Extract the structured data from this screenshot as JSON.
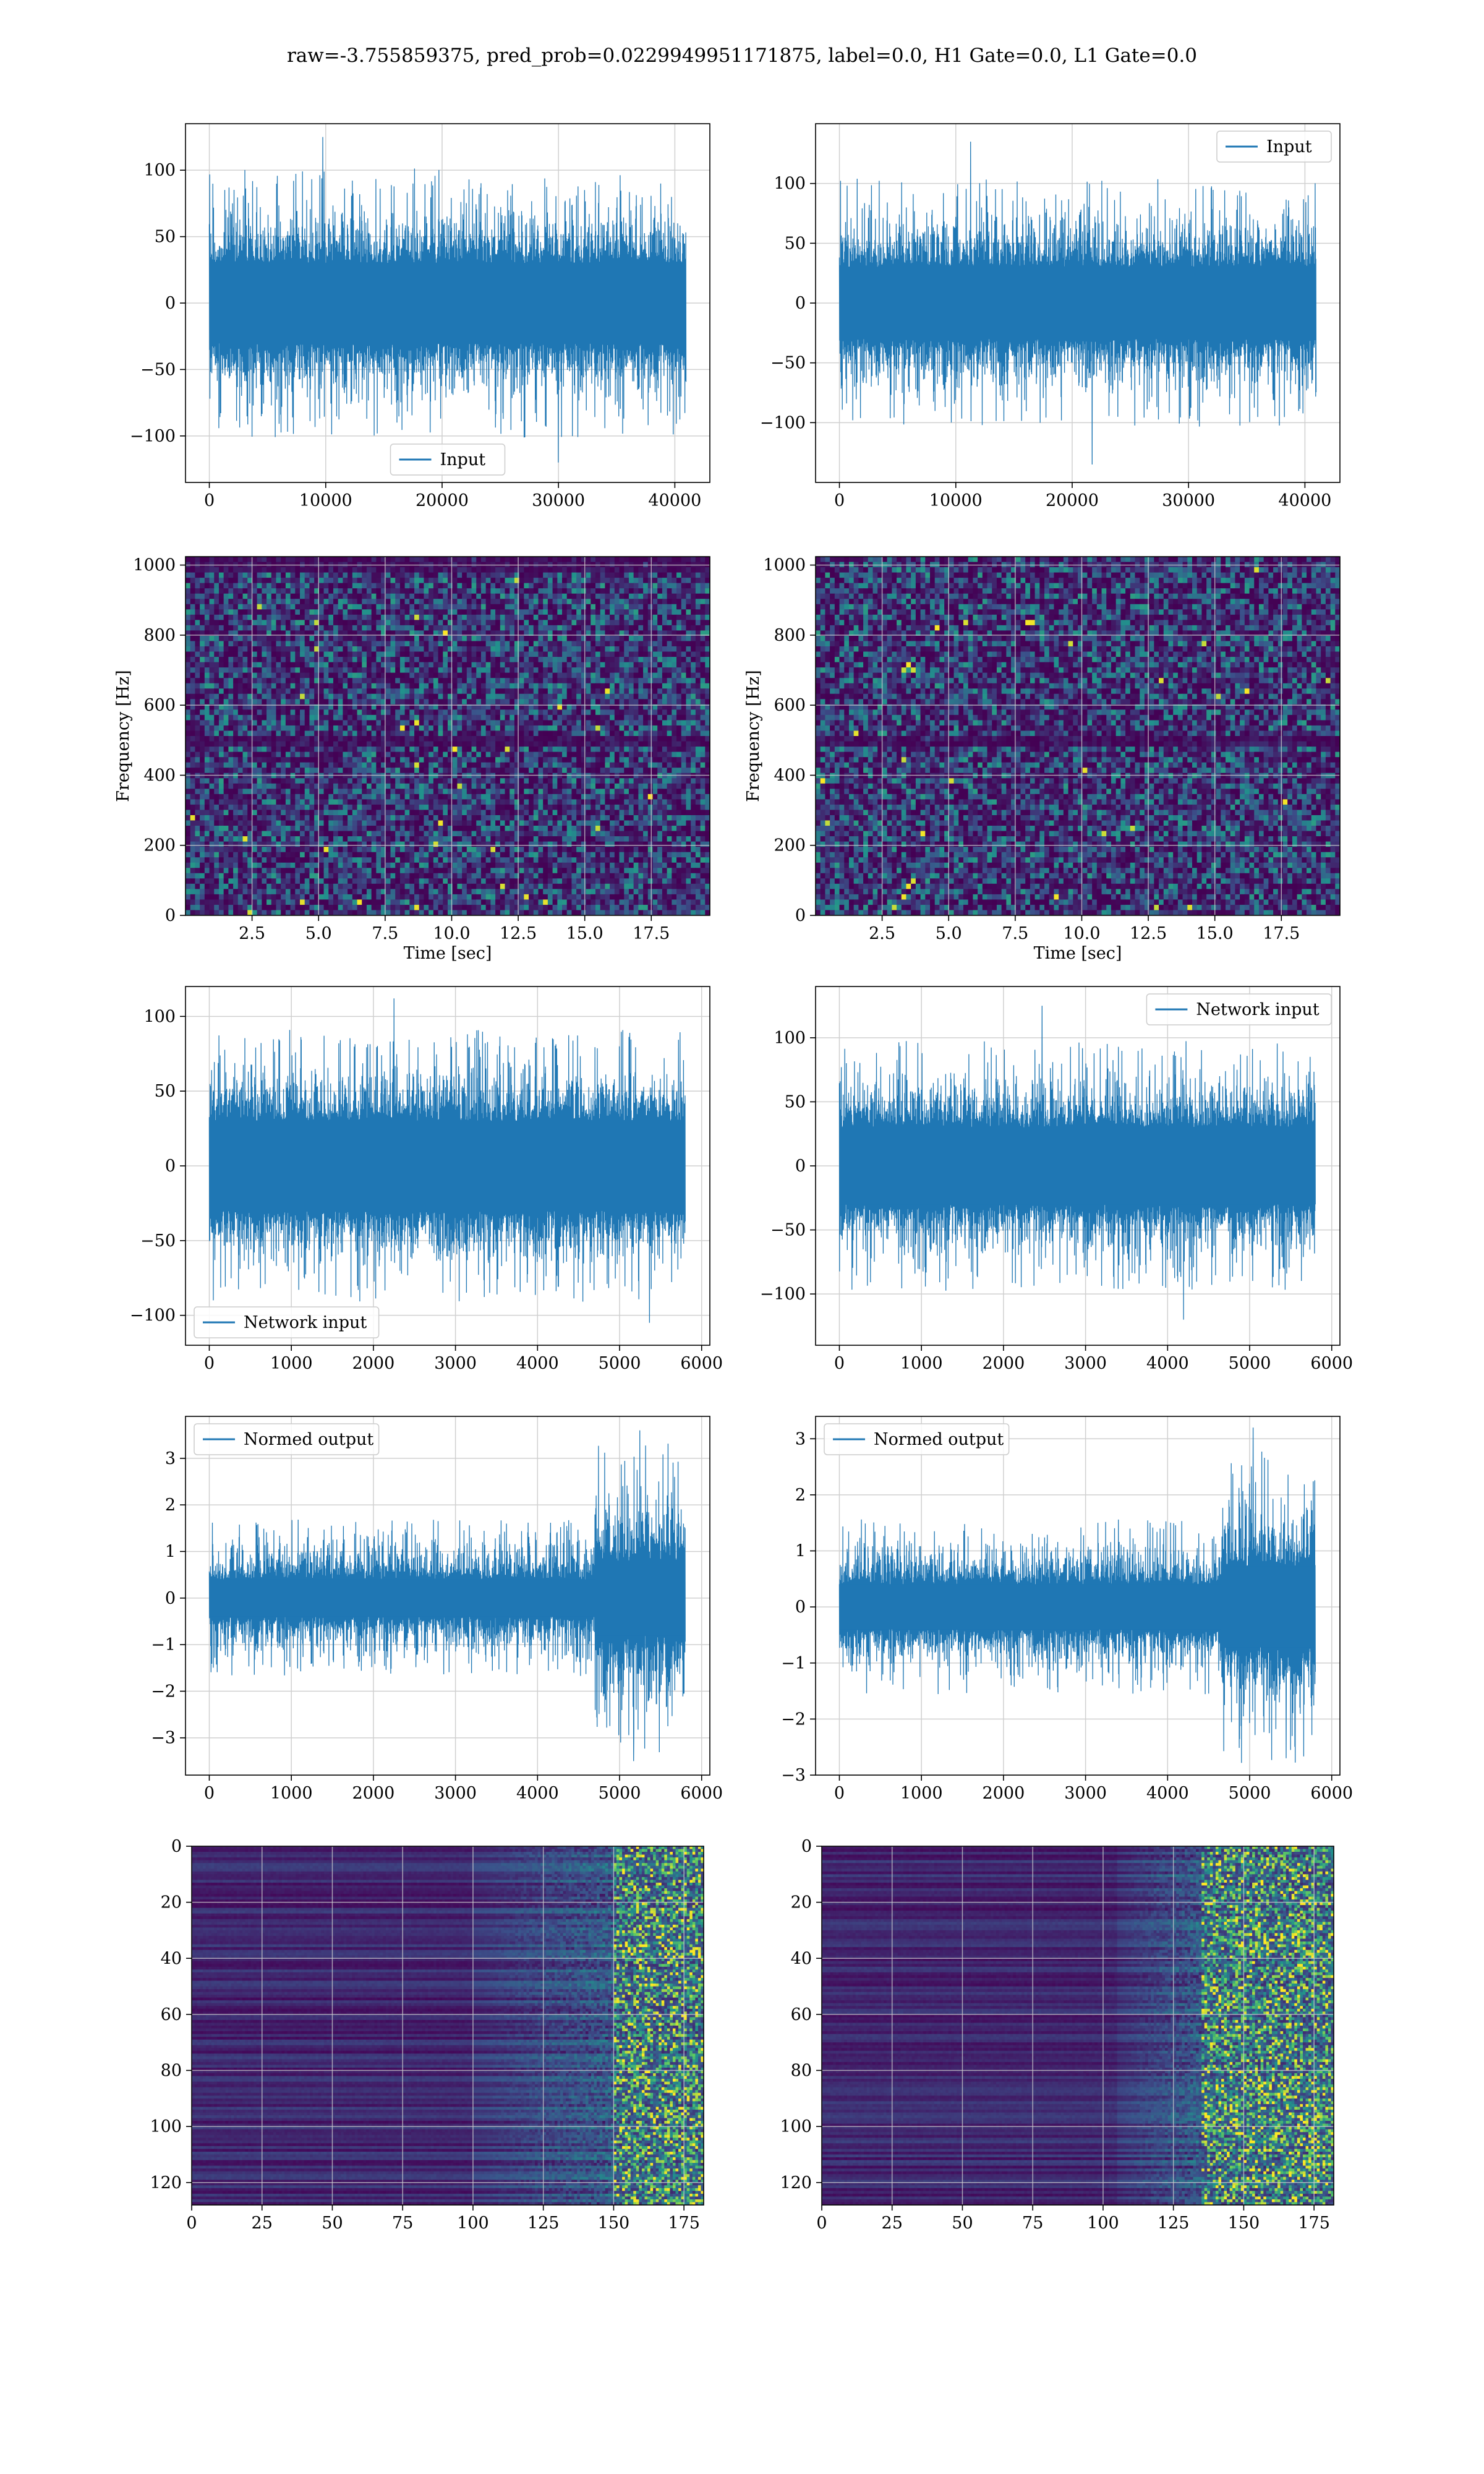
{
  "figure": {
    "title": "raw=-3.755859375, pred_prob=0.0229949951171875, label=0.0, H1 Gate=0.0, L1 Gate=0.0"
  },
  "colors": {
    "line": "#1f77b4",
    "grid": "#d0d0d0",
    "viridis_low": "#440154",
    "viridis_mid": "#21918c",
    "viridis_high": "#fde725"
  },
  "chart_data": [
    {
      "id": "input-h1",
      "type": "line",
      "legend": "Input",
      "legend_loc": "lower center",
      "xlim": [
        -2048,
        43008
      ],
      "ylim": [
        -135,
        135
      ],
      "xticks": [
        0,
        10000,
        20000,
        30000,
        40000
      ],
      "yticks": [
        -100,
        -50,
        0,
        50,
        100
      ],
      "series": [
        {
          "name": "Input",
          "x_range": [
            0,
            40960
          ],
          "core": 30,
          "base_amp": 78,
          "peak": 125,
          "trough": -120,
          "env": null
        }
      ]
    },
    {
      "id": "input-l1",
      "type": "line",
      "legend": "Input",
      "legend_loc": "upper right",
      "xlim": [
        -2048,
        43008
      ],
      "ylim": [
        -150,
        150
      ],
      "xticks": [
        0,
        10000,
        20000,
        30000,
        40000
      ],
      "yticks": [
        -100,
        -50,
        0,
        50,
        100
      ],
      "series": [
        {
          "name": "Input",
          "x_range": [
            0,
            40960
          ],
          "core": 30,
          "base_amp": 80,
          "peak": 135,
          "trough": -135,
          "env": null
        }
      ]
    },
    {
      "id": "spectrogram-h1",
      "type": "heatmap",
      "xlabel": "Time [sec]",
      "ylabel": "Frequency [Hz]",
      "xlim": [
        0,
        19.7
      ],
      "ylim": [
        0,
        1024
      ],
      "xticks": [
        2.5,
        5.0,
        7.5,
        10.0,
        12.5,
        15.0,
        17.5
      ],
      "yticks": [
        0,
        200,
        400,
        600,
        800,
        1000
      ],
      "cols": 110,
      "rows": 68,
      "seed": 11,
      "dark_rows_hz": [
        500,
        1000
      ]
    },
    {
      "id": "spectrogram-l1",
      "type": "heatmap",
      "xlabel": "Time [sec]",
      "ylabel": "Frequency [Hz]",
      "xlim": [
        0,
        19.7
      ],
      "ylim": [
        0,
        1024
      ],
      "xticks": [
        2.5,
        5.0,
        7.5,
        10.0,
        12.5,
        15.0,
        17.5
      ],
      "yticks": [
        0,
        200,
        400,
        600,
        800,
        1000
      ],
      "cols": 110,
      "rows": 68,
      "seed": 23,
      "dark_rows_hz": [
        500
      ]
    },
    {
      "id": "network-input-h1",
      "type": "line",
      "legend": "Network input",
      "legend_loc": "lower left",
      "xlim": [
        -290,
        6100
      ],
      "ylim": [
        -120,
        120
      ],
      "xticks": [
        0,
        1000,
        2000,
        3000,
        4000,
        5000,
        6000
      ],
      "yticks": [
        -100,
        -50,
        0,
        50,
        100
      ],
      "series": [
        {
          "name": "Network input",
          "x_range": [
            0,
            5800
          ],
          "core": 30,
          "base_amp": 70,
          "peak": 112,
          "trough": -105,
          "env": null
        }
      ]
    },
    {
      "id": "network-input-l1",
      "type": "line",
      "legend": "Network input",
      "legend_loc": "upper right",
      "xlim": [
        -290,
        6100
      ],
      "ylim": [
        -140,
        140
      ],
      "xticks": [
        0,
        1000,
        2000,
        3000,
        4000,
        5000,
        6000
      ],
      "yticks": [
        -100,
        -50,
        0,
        50,
        100
      ],
      "series": [
        {
          "name": "Network input",
          "x_range": [
            0,
            5800
          ],
          "core": 30,
          "base_amp": 75,
          "peak": 125,
          "trough": -120,
          "env": null
        }
      ]
    },
    {
      "id": "normed-output-h1",
      "type": "line",
      "legend": "Normed output",
      "legend_loc": "upper left",
      "xlim": [
        -290,
        6100
      ],
      "ylim": [
        -3.8,
        3.9
      ],
      "xticks": [
        0,
        1000,
        2000,
        3000,
        4000,
        5000,
        6000
      ],
      "yticks": [
        -3,
        -2,
        -1,
        0,
        1,
        2,
        3
      ],
      "series": [
        {
          "name": "Normed output",
          "x_range": [
            0,
            5800
          ],
          "core": 0.4,
          "base_amp": 1.3,
          "peak": 3.6,
          "trough": -3.5,
          "env": {
            "from": 4700,
            "gain": 2.0
          }
        }
      ]
    },
    {
      "id": "normed-output-l1",
      "type": "line",
      "legend": "Normed output",
      "legend_loc": "upper left",
      "xlim": [
        -290,
        6100
      ],
      "ylim": [
        -3.0,
        3.4
      ],
      "xticks": [
        0,
        1000,
        2000,
        3000,
        4000,
        5000,
        6000
      ],
      "yticks": [
        -3,
        -2,
        -1,
        0,
        1,
        2,
        3
      ],
      "series": [
        {
          "name": "Normed output",
          "x_range": [
            0,
            5800
          ],
          "core": 0.4,
          "base_amp": 1.2,
          "peak": 3.2,
          "trough": -2.7,
          "env": {
            "from": 4650,
            "gain": 1.8
          }
        }
      ]
    },
    {
      "id": "feature-map-h1",
      "type": "heatmap",
      "xlim": [
        0,
        182
      ],
      "ylim": [
        128,
        0
      ],
      "xticks": [
        0,
        25,
        50,
        75,
        100,
        125,
        150,
        175
      ],
      "yticks": [
        0,
        20,
        40,
        60,
        80,
        100,
        120
      ],
      "cols": 182,
      "rows": 128,
      "seed": 37,
      "active_from": 100,
      "bright_from": 150
    },
    {
      "id": "feature-map-l1",
      "type": "heatmap",
      "xlim": [
        0,
        182
      ],
      "ylim": [
        128,
        0
      ],
      "xticks": [
        0,
        25,
        50,
        75,
        100,
        125,
        150,
        175
      ],
      "yticks": [
        0,
        20,
        40,
        60,
        80,
        100,
        120
      ],
      "cols": 182,
      "rows": 128,
      "seed": 53,
      "active_from": 105,
      "bright_from": 135
    }
  ]
}
